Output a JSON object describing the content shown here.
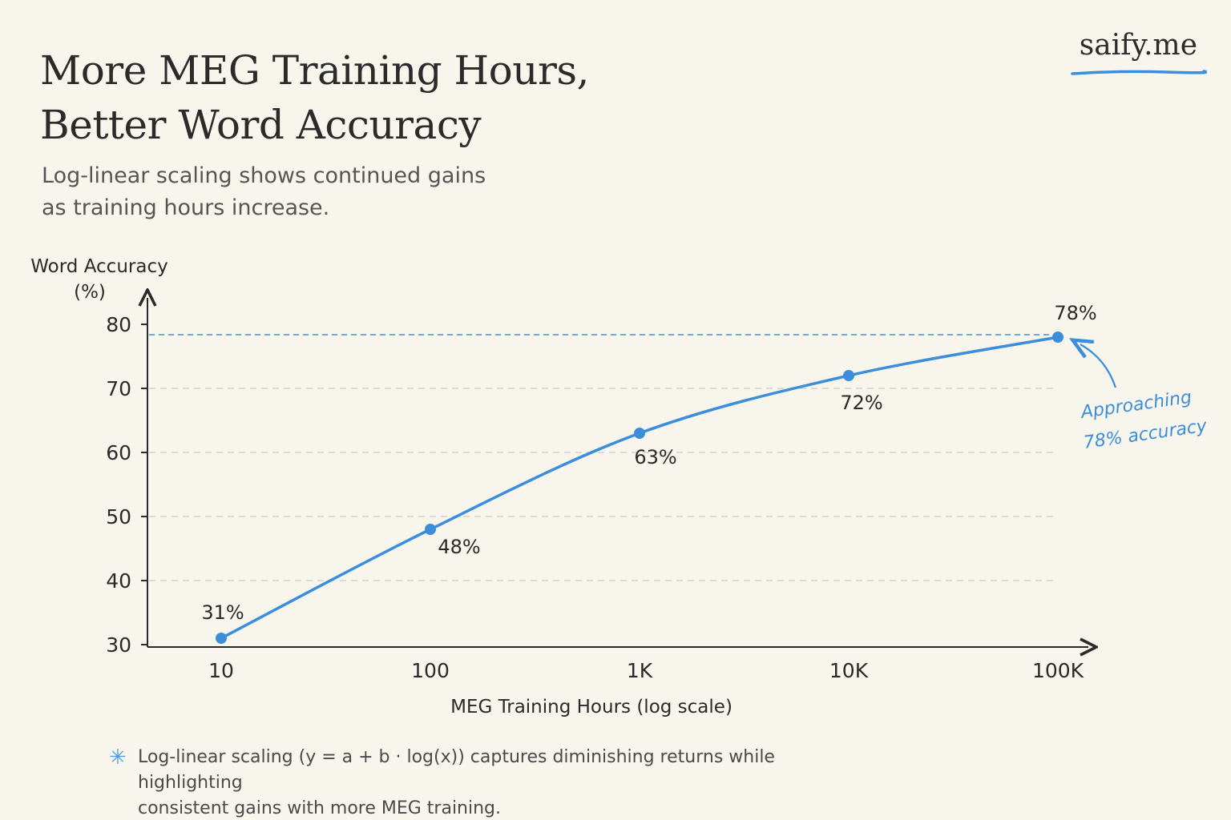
{
  "header": {
    "title_line1": "More MEG Training Hours,",
    "title_line2": "Better Word Accuracy",
    "subtitle_line1": "Log-linear scaling shows continued gains",
    "subtitle_line2": "as training hours increase.",
    "brand": "saify.me"
  },
  "chart_data": {
    "type": "line",
    "title": "More MEG Training Hours, Better Word Accuracy",
    "subtitle": "Log-linear scaling shows continued gains as training hours increase.",
    "x_scale": "log",
    "x": [
      10,
      100,
      1000,
      10000,
      100000
    ],
    "x_tick_labels": [
      "10",
      "100",
      "1K",
      "10K",
      "100K"
    ],
    "xlabel": "MEG Training Hours  (log scale)",
    "ylabel_line1": "Word Accuracy",
    "ylabel_line2": "(%)",
    "ylim": [
      30,
      80
    ],
    "y_ticks": [
      30,
      40,
      50,
      60,
      70,
      80
    ],
    "series": [
      {
        "values": [
          31,
          48,
          63,
          72,
          78
        ],
        "labels": [
          "31%",
          "48%",
          "63%",
          "72%",
          "78%"
        ],
        "color": "#3b8edb"
      }
    ],
    "reference_line": {
      "y": 78,
      "style": "dashed",
      "color": "#3b8edb"
    },
    "annotation": {
      "line1": "Approaching",
      "line2": "78% accuracy",
      "target_x": 100000,
      "target_y": 78
    },
    "grid": "horizontal-dashed"
  },
  "footnote": {
    "icon": "asterisk-icon",
    "text_line1": "Log-linear scaling (y = a + b · log(x)) captures diminishing returns while highlighting",
    "text_line2": "consistent gains with more MEG training."
  },
  "colors": {
    "background": "#f8f5ec",
    "accent": "#3b8edb",
    "text": "#2a2a2a",
    "grid": "#cfccc4"
  }
}
